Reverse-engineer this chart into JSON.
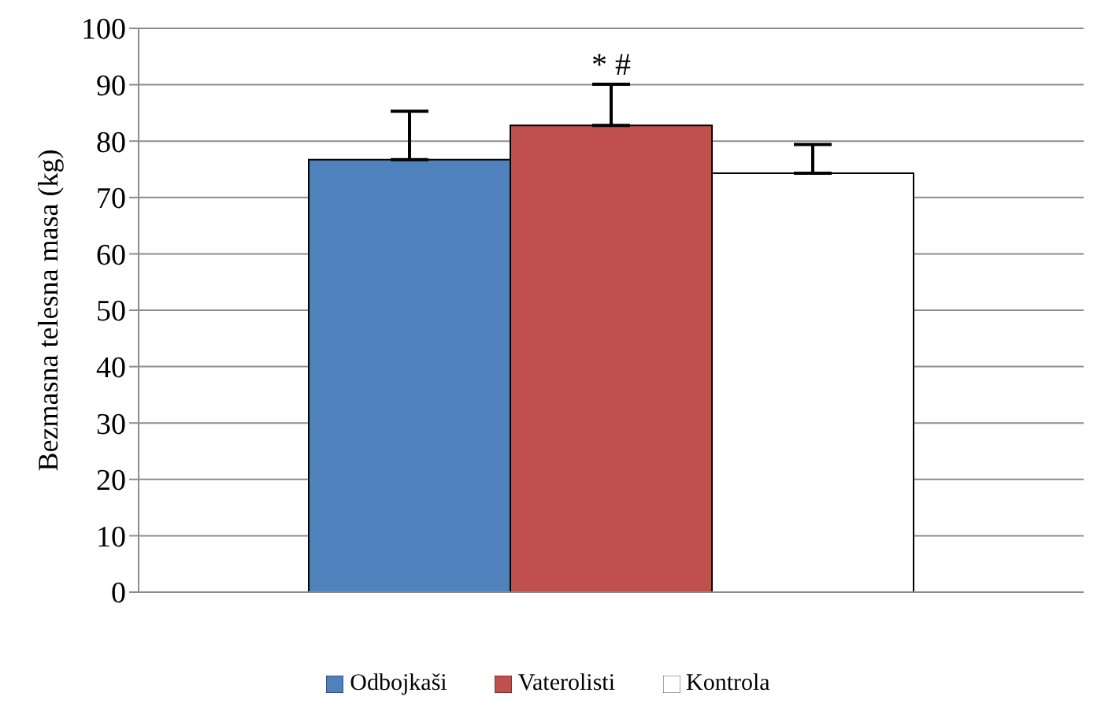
{
  "chart_data": {
    "type": "bar",
    "categories": [
      null
    ],
    "ylabel": "Bezmasna telesna masa  (kg)",
    "series": [
      {
        "name": "Odbojkaši",
        "color": "#4f81bd",
        "values": [
          76.7
        ],
        "errors": [
          [
            76.7,
            85.3
          ]
        ]
      },
      {
        "name": "Vaterolisti",
        "color": "#c0504d",
        "values": [
          82.8
        ],
        "errors": [
          [
            82.8,
            90.1
          ]
        ]
      },
      {
        "name": "Kontrola",
        "color": "#ffffff",
        "values": [
          74.3
        ],
        "errors": [
          [
            74.3,
            79.4
          ]
        ]
      }
    ],
    "annotations": [
      "* #"
    ],
    "ylim": [
      0,
      100
    ],
    "yticks": [
      0,
      10,
      20,
      30,
      40,
      50,
      60,
      70,
      80,
      90,
      100
    ],
    "grid": "y",
    "legend": "bottom"
  }
}
